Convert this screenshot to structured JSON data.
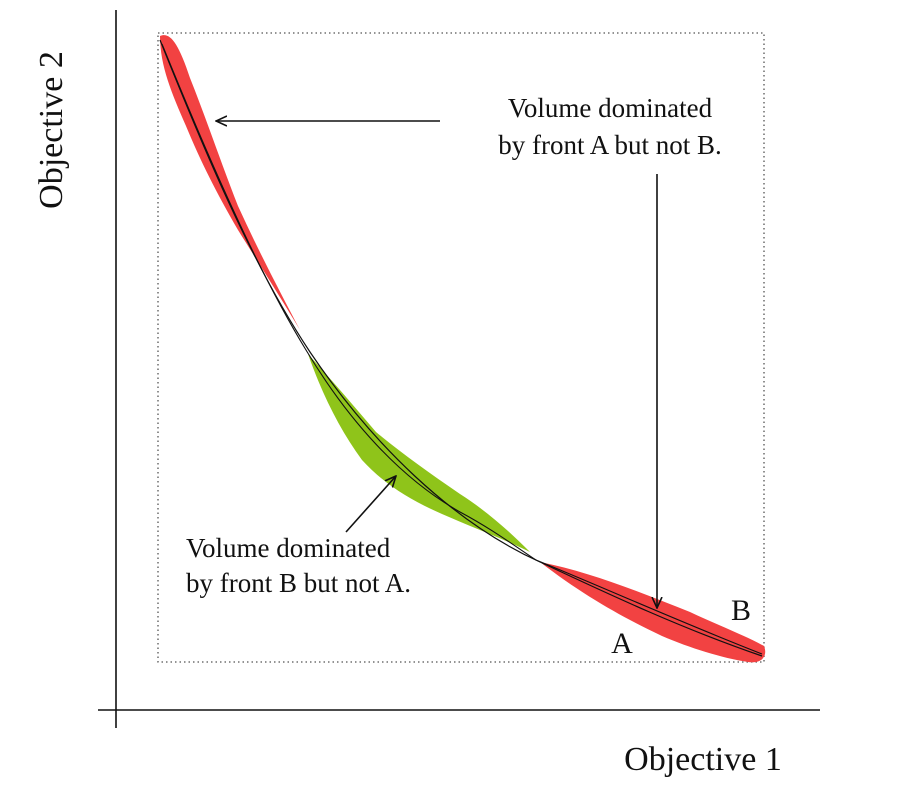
{
  "axes": {
    "x_label": "Objective 1",
    "y_label": "Objective 2"
  },
  "fronts": {
    "a_label": "A",
    "b_label": "B"
  },
  "annotations": {
    "a_not_b": [
      "Volume dominated",
      "by front A but not B."
    ],
    "b_not_a": [
      "Volume dominated",
      "by front B but not A."
    ]
  },
  "colors": {
    "a_not_b": "#f24242",
    "b_not_a": "#8fc41a",
    "line": "#111111",
    "frame": "#555555"
  }
}
